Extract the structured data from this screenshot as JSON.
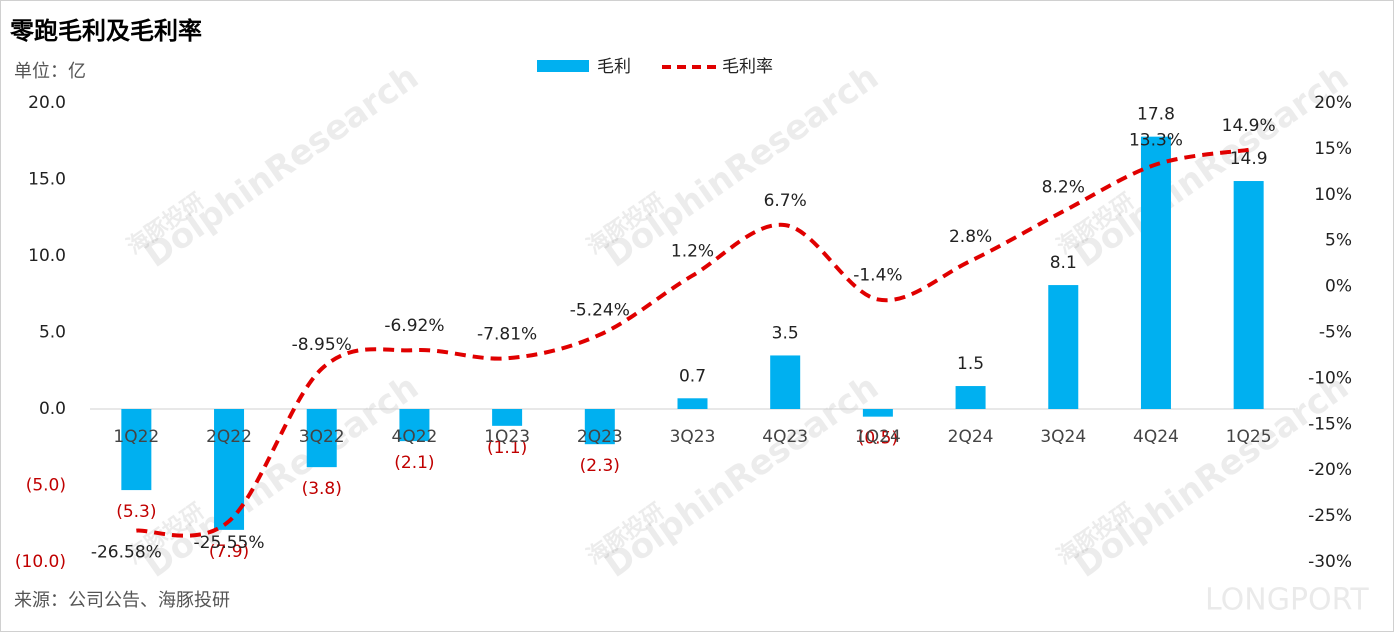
{
  "chart_data": {
    "type": "bar-line",
    "title": "零跑毛利及毛利率",
    "y_label": "单位：亿",
    "source": "来源：公司公告、海豚投研",
    "watermark": "海豚投研",
    "watermark_brand": "DolphinResearch",
    "logo": "LONGPORT",
    "categories": [
      "1Q22",
      "2Q22",
      "3Q22",
      "4Q22",
      "1Q23",
      "2Q23",
      "3Q23",
      "4Q23",
      "1Q24",
      "2Q24",
      "3Q24",
      "4Q24",
      "1Q25"
    ],
    "series": [
      {
        "name": "毛利",
        "type": "bar",
        "color": "#00b0f0",
        "negative_label_color": "#c00000",
        "values": [
          -5.3,
          -7.9,
          -3.8,
          -2.1,
          -1.1,
          -2.3,
          0.7,
          3.5,
          -0.5,
          1.5,
          8.1,
          17.8,
          14.9
        ],
        "value_labels": [
          "(5.3)",
          "(7.9)",
          "(3.8)",
          "(2.1)",
          "(1.1)",
          "(2.3)",
          "0.7",
          "3.5",
          "(0.5)",
          "1.5",
          "8.1",
          "17.8",
          "14.9"
        ]
      },
      {
        "name": "毛利率",
        "type": "line",
        "axis": "y2",
        "color": "#e00000",
        "dashed": true,
        "values": [
          -26.58,
          -25.55,
          -8.95,
          -6.92,
          -7.81,
          -5.24,
          1.2,
          6.7,
          -1.4,
          2.8,
          8.2,
          13.3,
          14.9
        ],
        "value_labels": [
          "-26.58%",
          "-25.55%",
          "-8.95%",
          "-6.92%",
          "-7.81%",
          "-5.24%",
          "1.2%",
          "6.7%",
          "-1.4%",
          "2.8%",
          "8.2%",
          "13.3%",
          "14.9%"
        ]
      }
    ],
    "ylim": [
      -10,
      20
    ],
    "yticks": [
      {
        "value": -10,
        "label": "(10.0)"
      },
      {
        "value": -5,
        "label": "(5.0)"
      },
      {
        "value": 0,
        "label": "0.0"
      },
      {
        "value": 5,
        "label": "5.0"
      },
      {
        "value": 10,
        "label": "10.0"
      },
      {
        "value": 15,
        "label": "15.0"
      },
      {
        "value": 20,
        "label": "20.0"
      }
    ],
    "y2lim": [
      -30,
      20
    ],
    "y2ticks": [
      {
        "value": -30,
        "label": "-30%"
      },
      {
        "value": -25,
        "label": "-25%"
      },
      {
        "value": -20,
        "label": "-20%"
      },
      {
        "value": -15,
        "label": "-15%"
      },
      {
        "value": -10,
        "label": "-10%"
      },
      {
        "value": -5,
        "label": "-5%"
      },
      {
        "value": 0,
        "label": "0%"
      },
      {
        "value": 5,
        "label": "5%"
      },
      {
        "value": 10,
        "label": "10%"
      },
      {
        "value": 15,
        "label": "15%"
      },
      {
        "value": 20,
        "label": "20%"
      }
    ],
    "negative_tick_color": "#c00000"
  }
}
